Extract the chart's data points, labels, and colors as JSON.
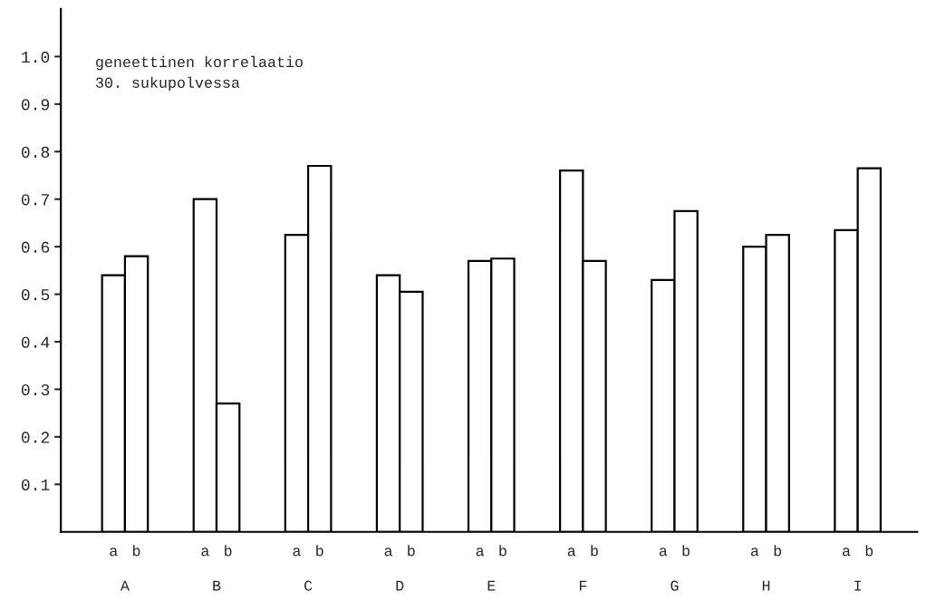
{
  "chart_data": {
    "type": "bar",
    "categories": [
      "A",
      "B",
      "C",
      "D",
      "E",
      "F",
      "G",
      "H",
      "I"
    ],
    "series": [
      {
        "name": "a",
        "color": "#ffffff",
        "values": [
          0.54,
          0.7,
          0.625,
          0.54,
          0.57,
          0.76,
          0.53,
          0.6,
          0.635
        ]
      },
      {
        "name": "b",
        "color": "#ffffff",
        "values": [
          0.58,
          0.27,
          0.77,
          0.505,
          0.575,
          0.57,
          0.675,
          0.625,
          0.765
        ]
      }
    ],
    "annotations": [
      "geneettinen korrelaatio\n30. sukupolvessa"
    ],
    "ylim": [
      0,
      1.1
    ],
    "yticks": [
      0.1,
      0.2,
      0.3,
      0.4,
      0.5,
      0.6,
      0.7,
      0.8,
      0.9,
      {
        "value": 1,
        "label": "1.0"
      }
    ],
    "grid": false
  }
}
